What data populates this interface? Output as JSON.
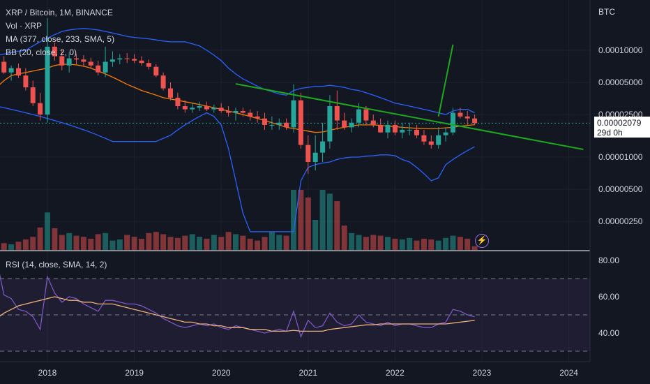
{
  "legend": {
    "symbol": "XRP / Bitcoin, 1M, BINANCE",
    "volume": "Vol · XRP",
    "ma": "MA (377, close, 233, SMA, 5)",
    "bb": "BB (20, close, 2, 0)"
  },
  "price_axis_title": "BTC",
  "current_price": "0.00002079",
  "countdown": "29d 0h",
  "rsi_legend": "RSI (14, close, SMA, 14, 2)",
  "colors": {
    "background": "#131722",
    "up": "#26a69a",
    "down": "#ef5350",
    "bb": "#2962ff",
    "ma": "#f57c00",
    "rsi": "#7e57c2",
    "rsi_ma": "#f0b27a",
    "trendline": "#1ea81e"
  },
  "chart_data": [
    {
      "type": "candlestick",
      "title": "XRP / Bitcoin, 1M, BINANCE",
      "y_scale": "log",
      "y_ticks": [
        "0.00010000",
        "0.00005000",
        "0.00002500",
        "0.00001000",
        "0.00000500",
        "0.00000250"
      ],
      "x_ticks": [
        "2018",
        "2019",
        "2020",
        "2021",
        "2022",
        "2023",
        "2024"
      ],
      "x": [
        "2017-06",
        "2017-07",
        "2017-08",
        "2017-09",
        "2017-10",
        "2017-11",
        "2017-12",
        "2018-01",
        "2018-02",
        "2018-03",
        "2018-04",
        "2018-05",
        "2018-06",
        "2018-07",
        "2018-08",
        "2018-09",
        "2018-10",
        "2018-11",
        "2018-12",
        "2019-01",
        "2019-02",
        "2019-03",
        "2019-04",
        "2019-05",
        "2019-06",
        "2019-07",
        "2019-08",
        "2019-09",
        "2019-10",
        "2019-11",
        "2019-12",
        "2020-01",
        "2020-02",
        "2020-03",
        "2020-04",
        "2020-05",
        "2020-06",
        "2020-07",
        "2020-08",
        "2020-09",
        "2020-10",
        "2020-11",
        "2020-12",
        "2021-01",
        "2021-02",
        "2021-03",
        "2021-04",
        "2021-05",
        "2021-06",
        "2021-07",
        "2021-08",
        "2021-09",
        "2021-10",
        "2021-11",
        "2021-12",
        "2022-01",
        "2022-02",
        "2022-03",
        "2022-04",
        "2022-05",
        "2022-06",
        "2022-07",
        "2022-08",
        "2022-09",
        "2022-10",
        "2022-11",
        "2022-12"
      ],
      "open": [
        8.5e-05,
        7.8e-05,
        6.2e-05,
        6.8e-05,
        5.8e-05,
        4.5e-05,
        3.2e-05,
        2.5e-05,
        0.000108,
        8.8e-05,
        7.2e-05,
        8.4e-05,
        8.2e-05,
        7.8e-05,
        7.2e-05,
        6.2e-05,
        7.8e-05,
        8.2e-05,
        8.4e-05,
        8.3e-05,
        8e-05,
        7.6e-05,
        7e-05,
        5.8e-05,
        4.4e-05,
        3.6e-05,
        3e-05,
        2.8e-05,
        2.9e-05,
        3e-05,
        2.8e-05,
        2.9e-05,
        2.7e-05,
        2.6e-05,
        2.7e-05,
        2.6e-05,
        2.4e-05,
        2.3e-05,
        2e-05,
        2e-05,
        2.1e-05,
        1.9e-05,
        3.4e-05,
        1.3e-05,
        9e-06,
        1.1e-05,
        1.4e-05,
        3e-05,
        2.2e-05,
        1.9e-05,
        2.1e-05,
        2.8e-05,
        2.2e-05,
        2e-05,
        1.7e-05,
        2e-05,
        1.7e-05,
        1.8e-05,
        1.8e-05,
        1.6e-05,
        1.4e-05,
        1.3e-05,
        1.6e-05,
        1.7e-05,
        2.6e-05,
        2.4e-05,
        2.3e-05
      ],
      "high": [
        9.5e-05,
        8.8e-05,
        7.2e-05,
        7.5e-05,
        6.8e-05,
        5.2e-05,
        4e-05,
        0.0002,
        0.000118,
        0.0001,
        9.5e-05,
        9.2e-05,
        9e-05,
        8.5e-05,
        8e-05,
        0.000108,
        9.8e-05,
        9.2e-05,
        9.4e-05,
        9.2e-05,
        8.8e-05,
        8.2e-05,
        7.4e-05,
        6.2e-05,
        5e-05,
        4e-05,
        3.4e-05,
        3.2e-05,
        3.3e-05,
        3.3e-05,
        3.1e-05,
        3.2e-05,
        3e-05,
        2.9e-05,
        2.9e-05,
        2.8e-05,
        2.7e-05,
        2.6e-05,
        2.4e-05,
        2.3e-05,
        2.3e-05,
        4.8e-05,
        4e-05,
        1.6e-05,
        1.6e-05,
        2.1e-05,
        3.8e-05,
        4.2e-05,
        2.6e-05,
        2.3e-05,
        3.2e-05,
        3e-05,
        2.5e-05,
        2.3e-05,
        2.2e-05,
        2.2e-05,
        2.1e-05,
        2.1e-05,
        2e-05,
        1.8e-05,
        1.6e-05,
        1.9e-05,
        1.9e-05,
        2.9e-05,
        2.9e-05,
        2.7e-05,
        2.5e-05
      ],
      "low": [
        7e-05,
        6e-05,
        5.2e-05,
        5.5e-05,
        4.2e-05,
        3e-05,
        2.2e-05,
        2.1e-05,
        8e-05,
        6.5e-05,
        6.2e-05,
        7.4e-05,
        7e-05,
        6.8e-05,
        5.8e-05,
        5.6e-05,
        7e-05,
        7.4e-05,
        7.6e-05,
        7.6e-05,
        7.2e-05,
        6.6e-05,
        5.6e-05,
        4.2e-05,
        3.4e-05,
        2.8e-05,
        2.6e-05,
        2.6e-05,
        2.7e-05,
        2.7e-05,
        2.6e-05,
        2.6e-05,
        2.4e-05,
        2.2e-05,
        2.4e-05,
        2.2e-05,
        2.1e-05,
        1.8e-05,
        1.8e-05,
        1.8e-05,
        1.8e-05,
        1.7e-05,
        1.2e-05,
        7e-06,
        7.5e-06,
        9e-06,
        1.2e-05,
        1.8e-05,
        1.8e-05,
        1.7e-05,
        1.9e-05,
        2e-05,
        1.9e-05,
        1.7e-05,
        1.5e-05,
        1.6e-05,
        1.5e-05,
        1.6e-05,
        1.5e-05,
        1.3e-05,
        1.2e-05,
        1.2e-05,
        1.4e-05,
        1.6e-05,
        2.3e-05,
        2e-05,
        2e-05
      ],
      "close": [
        7.8e-05,
        6.2e-05,
        6.8e-05,
        5.8e-05,
        4.5e-05,
        3.2e-05,
        2.5e-05,
        0.000108,
        8.8e-05,
        7.2e-05,
        8.4e-05,
        8.2e-05,
        7.8e-05,
        7.2e-05,
        6.2e-05,
        7.8e-05,
        8.2e-05,
        8.4e-05,
        8.3e-05,
        8e-05,
        7.6e-05,
        7e-05,
        5.8e-05,
        4.4e-05,
        3.6e-05,
        3e-05,
        2.8e-05,
        2.9e-05,
        3e-05,
        2.8e-05,
        2.9e-05,
        2.7e-05,
        2.6e-05,
        2.7e-05,
        2.6e-05,
        2.4e-05,
        2.3e-05,
        2e-05,
        2e-05,
        2.1e-05,
        1.9e-05,
        3.4e-05,
        1.3e-05,
        9e-06,
        1.1e-05,
        1.4e-05,
        3e-05,
        2.2e-05,
        1.9e-05,
        2.1e-05,
        2.8e-05,
        2.2e-05,
        2e-05,
        1.7e-05,
        2e-05,
        1.7e-05,
        1.8e-05,
        1.8e-05,
        1.6e-05,
        1.4e-05,
        1.3e-05,
        1.6e-05,
        1.7e-05,
        2.6e-05,
        2.4e-05,
        2.3e-05,
        2.08e-05
      ],
      "volume": [
        20,
        18,
        15,
        22,
        28,
        35,
        60,
        100,
        58,
        40,
        45,
        38,
        35,
        30,
        42,
        45,
        25,
        28,
        40,
        35,
        30,
        45,
        48,
        42,
        35,
        32,
        38,
        42,
        35,
        30,
        40,
        35,
        48,
        42,
        38,
        30,
        25,
        35,
        48,
        40,
        38,
        160,
        160,
        140,
        80,
        160,
        150,
        130,
        65,
        45,
        40,
        35,
        40,
        38,
        35,
        30,
        28,
        32,
        25,
        30,
        28,
        25,
        32,
        38,
        35,
        30,
        10
      ],
      "ma": [
        4.5e-05,
        5.2e-05,
        5.8e-05,
        6e-05,
        6.2e-05,
        6.4e-05,
        6.6e-05,
        6.8e-05,
        7.2e-05,
        7.4e-05,
        7.4e-05,
        7.3e-05,
        7.1e-05,
        6.8e-05,
        6.4e-05,
        6e-05,
        5.6e-05,
        5.2e-05,
        4.8e-05,
        4.5e-05,
        4.2e-05,
        4e-05,
        3.8e-05,
        3.6e-05,
        3.5e-05,
        3.4e-05,
        3.3e-05,
        3.2e-05,
        3.1e-05,
        3e-05,
        2.9e-05,
        2.8e-05,
        2.7e-05,
        2.6e-05,
        2.5e-05,
        2.4e-05,
        2.3e-05,
        2.2e-05,
        2.1e-05,
        2e-05,
        1.9e-05,
        1.85e-05,
        1.8e-05,
        1.75e-05,
        1.7e-05,
        1.72e-05,
        1.78e-05,
        1.85e-05,
        1.9e-05,
        1.95e-05,
        2e-05,
        2e-05,
        2e-05,
        1.98e-05,
        1.95e-05,
        1.93e-05,
        1.9e-05,
        1.88e-05,
        1.86e-05,
        1.85e-05,
        1.84e-05,
        1.85e-05,
        1.88e-05,
        1.9e-05,
        1.95e-05,
        1.98e-05,
        2.01e-05
      ],
      "bb_upper": [
        9e-05,
        9.2e-05,
        9.5e-05,
        9.8e-05,
        0.0001,
        0.00011,
        0.00012,
        0.00013,
        0.00014,
        0.00015,
        0.000155,
        0.000158,
        0.00016,
        0.000158,
        0.000155,
        0.00015,
        0.000145,
        0.00014,
        0.000135,
        0.000132,
        0.00013,
        0.000128,
        0.000125,
        0.000122,
        0.00012,
        0.00012,
        0.00012,
        0.000115,
        0.00011,
        0.0001,
        9e-05,
        8e-05,
        6.8e-05,
        6e-05,
        5.4e-05,
        5e-05,
        4.6e-05,
        4.3e-05,
        4.1e-05,
        3.9e-05,
        3.8e-05,
        4.2e-05,
        4.4e-05,
        4.5e-05,
        4.6e-05,
        4.6e-05,
        4.7e-05,
        4.6e-05,
        4.5e-05,
        4.3e-05,
        4.2e-05,
        4e-05,
        3.8e-05,
        3.6e-05,
        3.4e-05,
        3.2e-05,
        3.1e-05,
        3e-05,
        2.9e-05,
        2.8e-05,
        2.7e-05,
        2.6e-05,
        2.5e-05,
        2.7e-05,
        2.8e-05,
        2.8e-05,
        2.6e-05
      ],
      "bb_lower": [
        3e-05,
        2.9e-05,
        2.8e-05,
        2.7e-05,
        2.6e-05,
        2.5e-05,
        2.4e-05,
        2.3e-05,
        2.2e-05,
        2.1e-05,
        2e-05,
        1.9e-05,
        1.8e-05,
        1.7e-05,
        1.6e-05,
        1.5e-05,
        1.4e-05,
        1.4e-05,
        1.4e-05,
        1.4e-05,
        1.4e-05,
        1.4e-05,
        1.4e-05,
        1.5e-05,
        1.6e-05,
        1.8e-05,
        2e-05,
        2.2e-05,
        2.4e-05,
        2.6e-05,
        2.4e-05,
        2e-05,
        1.2e-05,
        6e-06,
        3e-06,
        2e-06,
        2e-06,
        2e-06,
        2e-06,
        2e-06,
        2e-06,
        2e-06,
        6e-06,
        8e-06,
        8.5e-06,
        8.8e-06,
        9e-06,
        9.5e-06,
        9.8e-06,
        1e-05,
        1e-05,
        1.02e-05,
        1.03e-05,
        1.05e-05,
        1.05e-05,
        1.03e-05,
        9.5e-06,
        9e-06,
        8e-06,
        7e-06,
        6e-06,
        6.4e-06,
        8.5e-06,
        9.5e-06,
        1.05e-05,
        1.15e-05,
        1.25e-05
      ]
    },
    {
      "type": "line",
      "title": "RSI (14, close, SMA, 14, 2)",
      "y_ticks": [
        "80.00",
        "60.00",
        "40.00"
      ],
      "bands": [
        70,
        50,
        30
      ],
      "series": [
        {
          "values": [
            80,
            61,
            59,
            53,
            52,
            49,
            42,
            71,
            62,
            57,
            60,
            59,
            56,
            54,
            52,
            58,
            58,
            57,
            56,
            56,
            55,
            53,
            51,
            48,
            46,
            44,
            43,
            44,
            45,
            44,
            45,
            43,
            42,
            44,
            43,
            42,
            41,
            40,
            41,
            42,
            41,
            52,
            38,
            47,
            43,
            44,
            51,
            46,
            44,
            45,
            50,
            46,
            45,
            44,
            46,
            44,
            45,
            45,
            44,
            43,
            43,
            45,
            46,
            53,
            52,
            50,
            49
          ]
        },
        {
          "values": [
            48,
            51,
            53,
            55,
            56,
            57,
            58,
            59,
            60,
            59,
            58,
            58,
            57,
            57,
            56,
            56,
            56,
            55,
            54,
            53,
            52,
            51,
            50,
            49,
            48,
            47,
            46,
            46,
            45,
            45,
            44,
            44,
            43,
            43,
            43,
            42,
            42,
            42,
            41,
            41,
            41,
            41.5,
            41,
            41,
            41,
            41,
            42,
            42.5,
            43,
            43.5,
            44,
            44.5,
            44.5,
            45,
            45,
            45,
            45,
            45,
            45,
            45,
            45,
            45,
            45,
            45.5,
            46,
            46.5,
            47
          ]
        }
      ]
    }
  ]
}
